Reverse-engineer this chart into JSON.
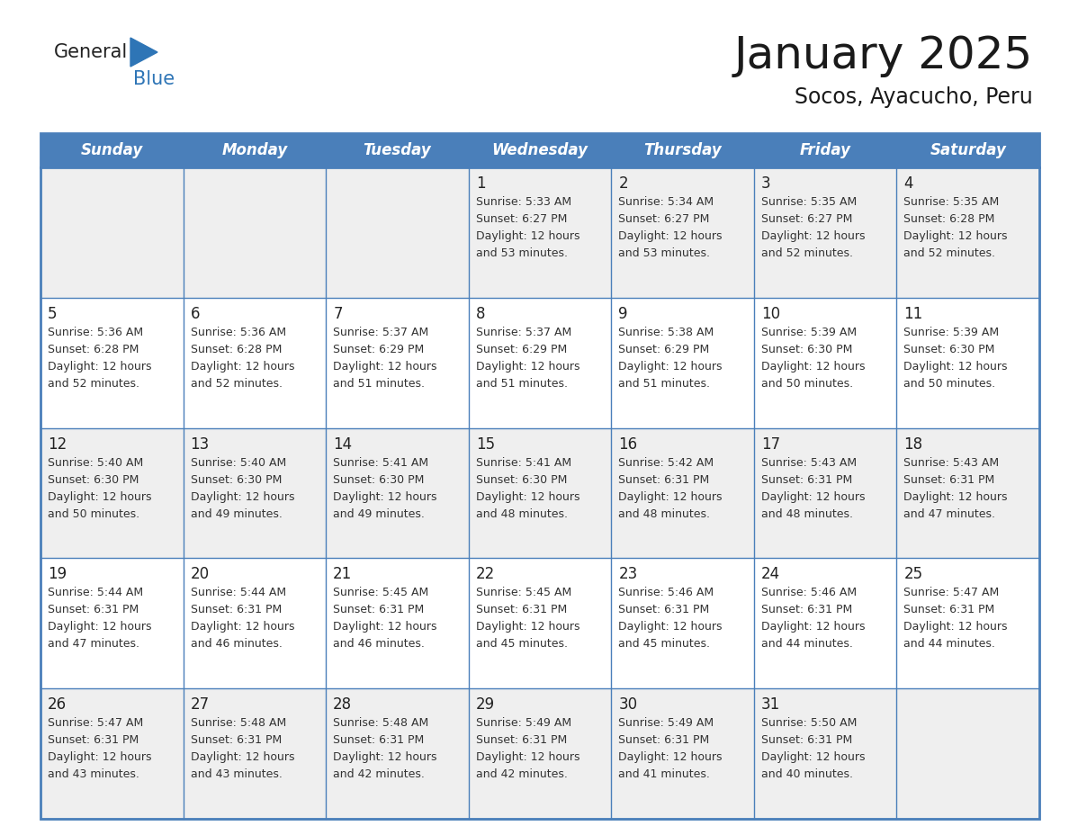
{
  "title": "January 2025",
  "subtitle": "Socos, Ayacucho, Peru",
  "header_bg_color": "#4a7fba",
  "header_text_color": "#FFFFFF",
  "days_of_week": [
    "Sunday",
    "Monday",
    "Tuesday",
    "Wednesday",
    "Thursday",
    "Friday",
    "Saturday"
  ],
  "row_bg_colors": [
    "#EFEFEF",
    "#FFFFFF",
    "#EFEFEF",
    "#FFFFFF",
    "#EFEFEF"
  ],
  "border_color": "#4a7fba",
  "text_color": "#333333",
  "logo_general_color": "#222222",
  "logo_blue_color": "#2E75B6",
  "calendar_data": [
    [
      {
        "day": null,
        "sunrise": null,
        "sunset": null,
        "daylight_min": null
      },
      {
        "day": null,
        "sunrise": null,
        "sunset": null,
        "daylight_min": null
      },
      {
        "day": null,
        "sunrise": null,
        "sunset": null,
        "daylight_min": null
      },
      {
        "day": 1,
        "sunrise": "5:33 AM",
        "sunset": "6:27 PM",
        "daylight_min": 53
      },
      {
        "day": 2,
        "sunrise": "5:34 AM",
        "sunset": "6:27 PM",
        "daylight_min": 53
      },
      {
        "day": 3,
        "sunrise": "5:35 AM",
        "sunset": "6:27 PM",
        "daylight_min": 52
      },
      {
        "day": 4,
        "sunrise": "5:35 AM",
        "sunset": "6:28 PM",
        "daylight_min": 52
      }
    ],
    [
      {
        "day": 5,
        "sunrise": "5:36 AM",
        "sunset": "6:28 PM",
        "daylight_min": 52
      },
      {
        "day": 6,
        "sunrise": "5:36 AM",
        "sunset": "6:28 PM",
        "daylight_min": 52
      },
      {
        "day": 7,
        "sunrise": "5:37 AM",
        "sunset": "6:29 PM",
        "daylight_min": 51
      },
      {
        "day": 8,
        "sunrise": "5:37 AM",
        "sunset": "6:29 PM",
        "daylight_min": 51
      },
      {
        "day": 9,
        "sunrise": "5:38 AM",
        "sunset": "6:29 PM",
        "daylight_min": 51
      },
      {
        "day": 10,
        "sunrise": "5:39 AM",
        "sunset": "6:30 PM",
        "daylight_min": 50
      },
      {
        "day": 11,
        "sunrise": "5:39 AM",
        "sunset": "6:30 PM",
        "daylight_min": 50
      }
    ],
    [
      {
        "day": 12,
        "sunrise": "5:40 AM",
        "sunset": "6:30 PM",
        "daylight_min": 50
      },
      {
        "day": 13,
        "sunrise": "5:40 AM",
        "sunset": "6:30 PM",
        "daylight_min": 49
      },
      {
        "day": 14,
        "sunrise": "5:41 AM",
        "sunset": "6:30 PM",
        "daylight_min": 49
      },
      {
        "day": 15,
        "sunrise": "5:41 AM",
        "sunset": "6:30 PM",
        "daylight_min": 48
      },
      {
        "day": 16,
        "sunrise": "5:42 AM",
        "sunset": "6:31 PM",
        "daylight_min": 48
      },
      {
        "day": 17,
        "sunrise": "5:43 AM",
        "sunset": "6:31 PM",
        "daylight_min": 48
      },
      {
        "day": 18,
        "sunrise": "5:43 AM",
        "sunset": "6:31 PM",
        "daylight_min": 47
      }
    ],
    [
      {
        "day": 19,
        "sunrise": "5:44 AM",
        "sunset": "6:31 PM",
        "daylight_min": 47
      },
      {
        "day": 20,
        "sunrise": "5:44 AM",
        "sunset": "6:31 PM",
        "daylight_min": 46
      },
      {
        "day": 21,
        "sunrise": "5:45 AM",
        "sunset": "6:31 PM",
        "daylight_min": 46
      },
      {
        "day": 22,
        "sunrise": "5:45 AM",
        "sunset": "6:31 PM",
        "daylight_min": 45
      },
      {
        "day": 23,
        "sunrise": "5:46 AM",
        "sunset": "6:31 PM",
        "daylight_min": 45
      },
      {
        "day": 24,
        "sunrise": "5:46 AM",
        "sunset": "6:31 PM",
        "daylight_min": 44
      },
      {
        "day": 25,
        "sunrise": "5:47 AM",
        "sunset": "6:31 PM",
        "daylight_min": 44
      }
    ],
    [
      {
        "day": 26,
        "sunrise": "5:47 AM",
        "sunset": "6:31 PM",
        "daylight_min": 43
      },
      {
        "day": 27,
        "sunrise": "5:48 AM",
        "sunset": "6:31 PM",
        "daylight_min": 43
      },
      {
        "day": 28,
        "sunrise": "5:48 AM",
        "sunset": "6:31 PM",
        "daylight_min": 42
      },
      {
        "day": 29,
        "sunrise": "5:49 AM",
        "sunset": "6:31 PM",
        "daylight_min": 42
      },
      {
        "day": 30,
        "sunrise": "5:49 AM",
        "sunset": "6:31 PM",
        "daylight_min": 41
      },
      {
        "day": 31,
        "sunrise": "5:50 AM",
        "sunset": "6:31 PM",
        "daylight_min": 40
      },
      {
        "day": null,
        "sunrise": null,
        "sunset": null,
        "daylight_min": null
      }
    ]
  ]
}
